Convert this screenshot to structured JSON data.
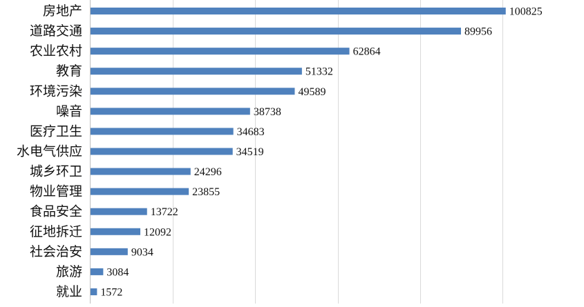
{
  "chart_data": {
    "type": "bar",
    "orientation": "horizontal",
    "categories": [
      "房地产",
      "道路交通",
      "农业农村",
      "教育",
      "环境污染",
      "噪音",
      "医疗卫生",
      "水电气供应",
      "城乡环卫",
      "物业管理",
      "食品安全",
      "征地拆迁",
      "社会治安",
      "旅游",
      "就业"
    ],
    "values": [
      100825,
      89956,
      62864,
      51332,
      49589,
      38738,
      34683,
      34519,
      24296,
      23855,
      13722,
      12092,
      9034,
      3084,
      1572
    ],
    "xlim": [
      0,
      120000
    ],
    "grid": "vertical",
    "bar_color": "#4f81bd",
    "title": "",
    "xlabel": "",
    "ylabel": ""
  }
}
